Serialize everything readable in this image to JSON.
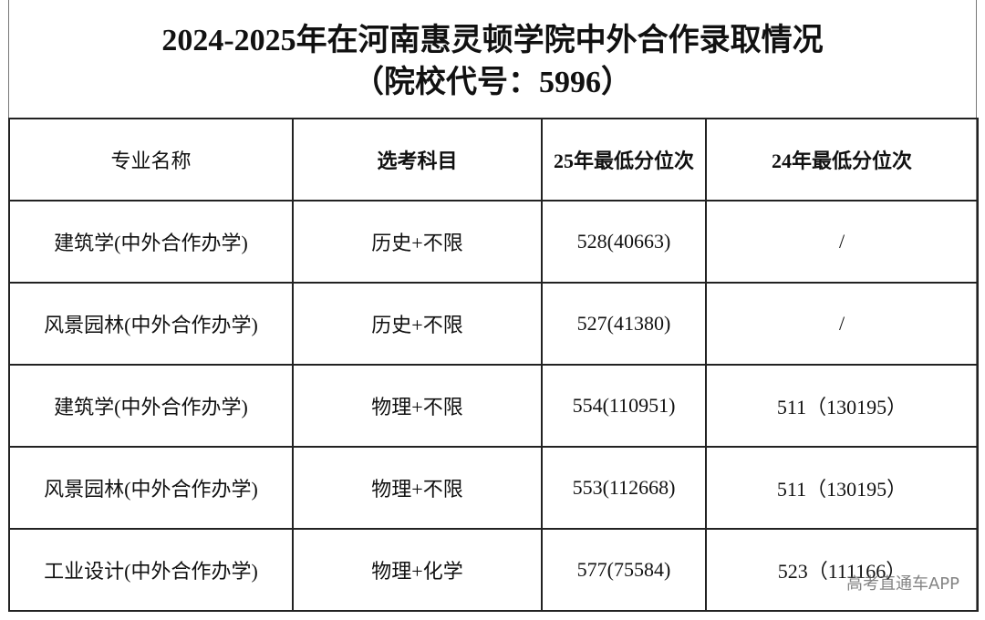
{
  "header": {
    "title_lines": [
      "2024-2025年在河南惠灵顿学院中外合作录取情况",
      "（院校代号：5996）"
    ]
  },
  "table": {
    "columns": [
      "专业名称",
      "选考科目",
      "25年最低分位次",
      "24年最低分位次"
    ],
    "rows": [
      [
        "建筑学(中外合作办学)",
        "历史+不限",
        "528(40663)",
        "/"
      ],
      [
        "风景园林(中外合作办学)",
        "历史+不限",
        "527(41380)",
        "/"
      ],
      [
        "建筑学(中外合作办学)",
        "物理+不限",
        "554(110951)",
        "511（130195）"
      ],
      [
        "风景园林(中外合作办学)",
        "物理+不限",
        "553(112668)",
        "511（130195）"
      ],
      [
        "工业设计(中外合作办学)",
        "物理+化学",
        "577(75584)",
        "523（111166）"
      ]
    ]
  },
  "watermark": "高考直通车APP"
}
